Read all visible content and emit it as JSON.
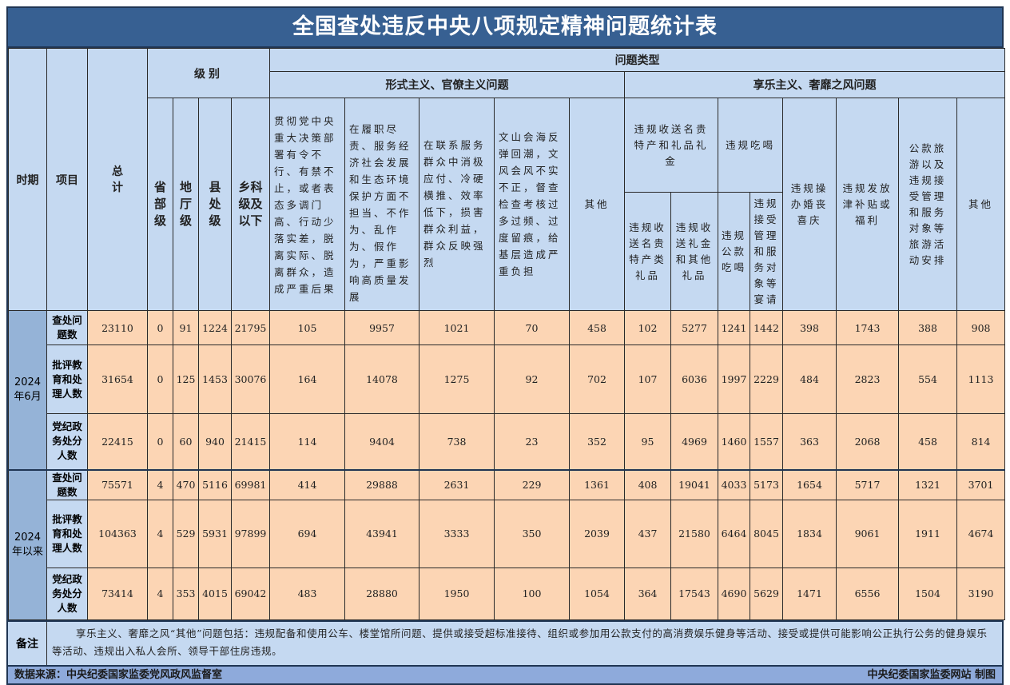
{
  "title": "全国查处违反中央八项规定精神问题统计表",
  "header": {
    "period": "时期",
    "item": "项目",
    "total": "总计",
    "level_group": "级别",
    "levels": [
      "省部级",
      "地厅级",
      "县处级",
      "乡科级及以下"
    ],
    "problem_type": "问题类型",
    "formalism_group": "形式主义、官僚主义问题",
    "formalism_cols": [
      "贯彻党中央重大决策部署有令不行、有禁不止，或者表态多调门高、行动少落实差，脱离实际、脱离群众，造成严重后果",
      "在履职尽责、服务经济社会发展和生态环境保护方面不担当、不作为、乱作为、假作为，严重影响高质量发展",
      "在联系服务群众中消极应付、冷硬横推、效率低下，损害群众利益，群众反映强烈",
      "文山会海反弹回潮，文风会风不实不正，督查检查考核过多过频、过度留痕，给基层造成严重负担",
      "其他"
    ],
    "hedonism_group": "享乐主义、奢靡之风问题",
    "gift_group": "违规收送名贵特产和礼品礼金",
    "gift_cols": [
      "违规收送名贵特产类礼品",
      "违规收送礼金和其他礼品"
    ],
    "dining_group": "违规吃喝",
    "dining_cols": [
      "违规公款吃喝",
      "违规接受管理和服务对象等宴请"
    ],
    "hedonism_cols": [
      "违规操办婚丧喜庆",
      "违规发放津补贴或福利",
      "公款旅游以及违规接受管理和服务对象等旅游活动安排",
      "其他"
    ]
  },
  "periods": [
    {
      "label": "2024年6月",
      "rows": [
        {
          "item": "查处问题数",
          "values": [
            23110,
            0,
            91,
            1224,
            21795,
            105,
            9957,
            1021,
            70,
            458,
            102,
            5277,
            1241,
            1442,
            398,
            1743,
            388,
            908
          ]
        },
        {
          "item": "批评教育和处理人数",
          "values": [
            31654,
            0,
            125,
            1453,
            30076,
            164,
            14078,
            1275,
            92,
            702,
            107,
            6036,
            1997,
            2229,
            484,
            2823,
            554,
            1113
          ]
        },
        {
          "item": "党纪政务处分人数",
          "values": [
            22415,
            0,
            60,
            940,
            21415,
            114,
            9404,
            738,
            23,
            352,
            95,
            4969,
            1460,
            1557,
            363,
            2068,
            458,
            814
          ]
        }
      ]
    },
    {
      "label": "2024年以来",
      "rows": [
        {
          "item": "查处问题数",
          "values": [
            75571,
            4,
            470,
            5116,
            69981,
            414,
            29888,
            2631,
            229,
            1361,
            408,
            19041,
            4033,
            5173,
            1654,
            5717,
            1321,
            3701
          ]
        },
        {
          "item": "批评教育和处理人数",
          "values": [
            104363,
            4,
            529,
            5931,
            97899,
            694,
            43941,
            3333,
            350,
            2039,
            437,
            21580,
            6464,
            8045,
            1834,
            9061,
            1911,
            4674
          ]
        },
        {
          "item": "党纪政务处分人数",
          "values": [
            73414,
            4,
            353,
            4015,
            69042,
            483,
            28880,
            1950,
            100,
            1054,
            364,
            17543,
            4690,
            5629,
            1471,
            6556,
            1504,
            3190
          ]
        }
      ]
    }
  ],
  "note": {
    "label": "备注",
    "text": "享乐主义、奢靡之风“其他”问题包括：违规配备和使用公车、楼堂馆所问题、提供或接受超标准接待、组织或参加用公款支付的高消费娱乐健身等活动、接受或提供可能影响公正执行公务的健身娱乐等活动、违规出入私人会所、领导干部住房违规。"
  },
  "footer": {
    "source": "数据来源：中央纪委国家监委党风政风监督室",
    "credit": "中央纪委国家监委网站 制图"
  },
  "colors": {
    "title_bg": "#376092",
    "header_bg": "#c5d9f1",
    "data_bg": "#fcd5b4",
    "period_bg": "#95b3d7",
    "footer_bg": "#8eaadb"
  }
}
